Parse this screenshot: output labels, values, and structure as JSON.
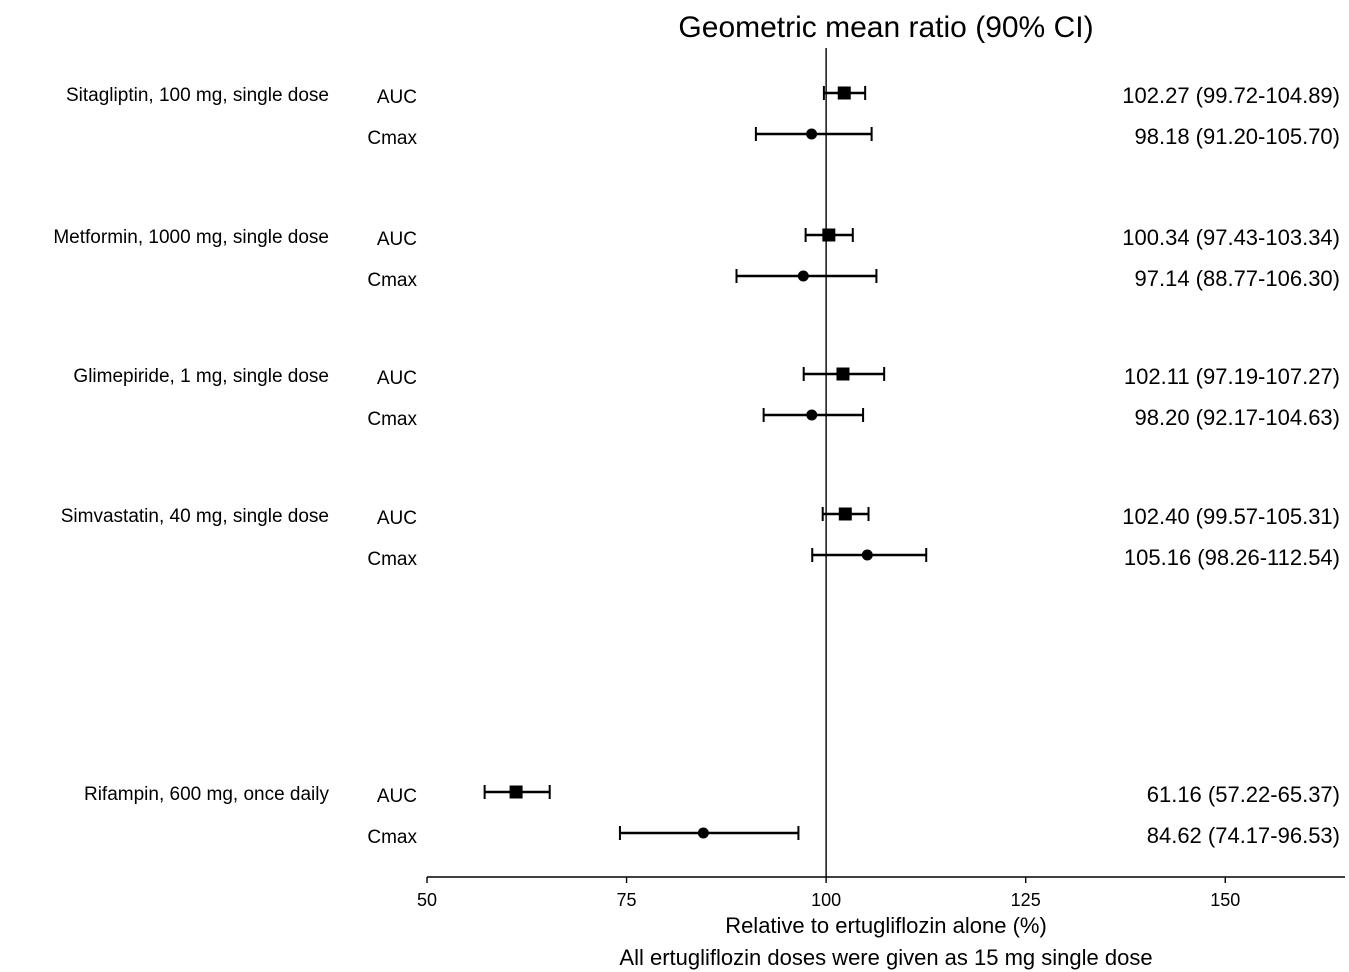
{
  "chart_data": {
    "type": "forest",
    "title": "Geometric mean ratio (90% CI)",
    "xlabel": "Relative to ertugliflozin alone (%)",
    "footnote": "All ertugliflozin doses were given as 15 mg single dose",
    "xlim": [
      50,
      165
    ],
    "reference_line": 100,
    "x_ticks": [
      "50",
      "75",
      "100",
      "125",
      "150"
    ],
    "groups": [
      {
        "drug": "Sitagliptin, 100 mg, single dose",
        "rows": [
          {
            "param": "AUC",
            "marker": "square",
            "estimate": 102.27,
            "lower": 99.72,
            "upper": 104.89,
            "ci_text": "102.27 (99.72-104.89)"
          },
          {
            "param": "Cmax",
            "marker": "circle",
            "estimate": 98.18,
            "lower": 91.2,
            "upper": 105.7,
            "ci_text": "98.18 (91.20-105.70)"
          }
        ]
      },
      {
        "drug": "Metformin, 1000 mg, single dose",
        "rows": [
          {
            "param": "AUC",
            "marker": "square",
            "estimate": 100.34,
            "lower": 97.43,
            "upper": 103.34,
            "ci_text": "100.34 (97.43-103.34)"
          },
          {
            "param": "Cmax",
            "marker": "circle",
            "estimate": 97.14,
            "lower": 88.77,
            "upper": 106.3,
            "ci_text": "97.14 (88.77-106.30)"
          }
        ]
      },
      {
        "drug": "Glimepiride, 1 mg, single dose",
        "rows": [
          {
            "param": "AUC",
            "marker": "square",
            "estimate": 102.11,
            "lower": 97.19,
            "upper": 107.27,
            "ci_text": "102.11 (97.19-107.27)"
          },
          {
            "param": "Cmax",
            "marker": "circle",
            "estimate": 98.2,
            "lower": 92.17,
            "upper": 104.63,
            "ci_text": "98.20 (92.17-104.63)"
          }
        ]
      },
      {
        "drug": "Simvastatin, 40 mg, single dose",
        "rows": [
          {
            "param": "AUC",
            "marker": "square",
            "estimate": 102.4,
            "lower": 99.57,
            "upper": 105.31,
            "ci_text": "102.40 (99.57-105.31)"
          },
          {
            "param": "Cmax",
            "marker": "circle",
            "estimate": 105.16,
            "lower": 98.26,
            "upper": 112.54,
            "ci_text": "105.16 (98.26-112.54)"
          }
        ]
      },
      {
        "drug": "Rifampin, 600 mg, once daily",
        "rows": [
          {
            "param": "AUC",
            "marker": "square",
            "estimate": 61.16,
            "lower": 57.22,
            "upper": 65.37,
            "ci_text": "61.16 (57.22-65.37)"
          },
          {
            "param": "Cmax",
            "marker": "circle",
            "estimate": 84.62,
            "lower": 74.17,
            "upper": 96.53,
            "ci_text": "84.62 (74.17-96.53)"
          }
        ]
      }
    ]
  }
}
